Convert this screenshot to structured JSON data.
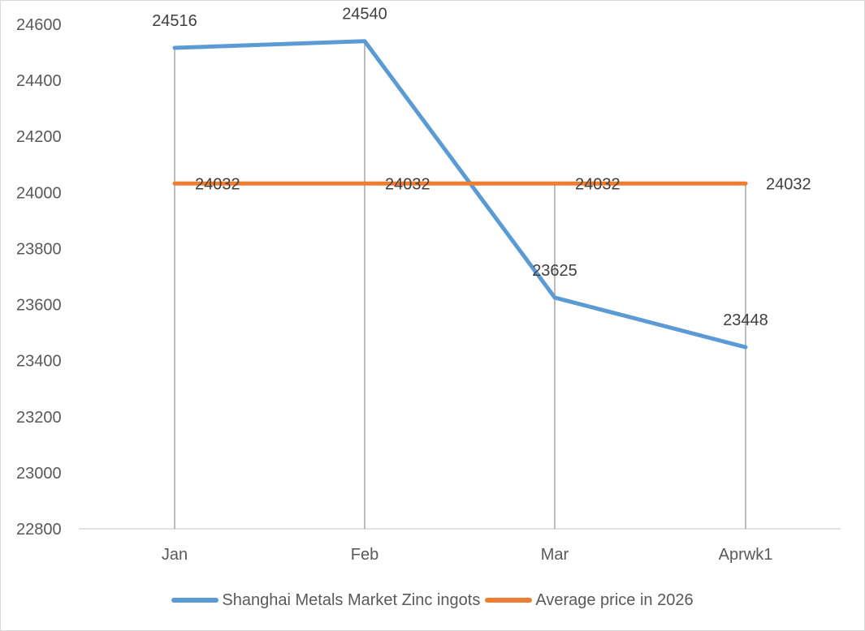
{
  "chart_data": {
    "type": "line",
    "title": "",
    "xlabel": "",
    "ylabel": "",
    "categories": [
      "Jan",
      "Feb",
      "Mar",
      "Aprwk1"
    ],
    "series": [
      {
        "name": "Shanghai Metals Market Zinc ingots",
        "color": "#5b9bd5",
        "values": [
          24516,
          24540,
          23625,
          23448
        ],
        "labels": [
          "24516",
          "24540",
          "23625",
          "23448"
        ]
      },
      {
        "name": "Average price in 2026",
        "color": "#ed7d31",
        "values": [
          24032,
          24032,
          24032,
          24032
        ],
        "labels": [
          "24032",
          "24032",
          "24032",
          "24032"
        ]
      }
    ],
    "ylim": [
      22800,
      24600
    ],
    "yticks": [
      "24600",
      "24400",
      "24200",
      "24000",
      "23800",
      "23600",
      "23400",
      "23200",
      "23000",
      "22800"
    ],
    "grid": false,
    "drop_lines": true,
    "legend_position": "bottom"
  }
}
